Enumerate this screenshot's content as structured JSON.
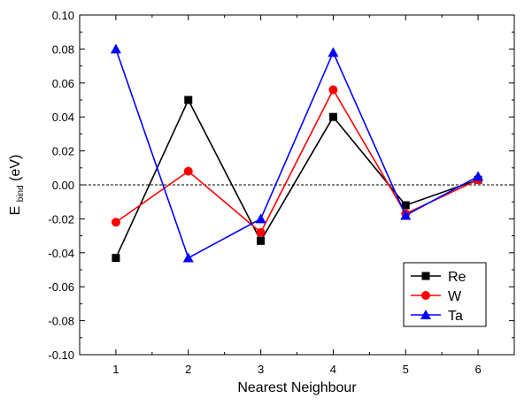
{
  "chart_data": {
    "type": "line",
    "title": "",
    "xlabel": "Nearest Neighbour",
    "ylabel_main": "E",
    "ylabel_sub": "bind",
    "ylabel_unit": "(eV)",
    "x": [
      1,
      2,
      3,
      4,
      5,
      6
    ],
    "x_ticks": [
      "1",
      "2",
      "3",
      "4",
      "5",
      "6"
    ],
    "xlim": [
      0.5,
      6.5
    ],
    "ylim": [
      -0.1,
      0.1
    ],
    "y_ticks": [
      "0.10",
      "0.08",
      "0.06",
      "0.04",
      "0.02",
      "0.00",
      "-0.02",
      "-0.04",
      "-0.06",
      "-0.08",
      "-0.10"
    ],
    "y_tick_values": [
      0.1,
      0.08,
      0.06,
      0.04,
      0.02,
      0.0,
      -0.02,
      -0.04,
      -0.06,
      -0.08,
      -0.1
    ],
    "reference_line": {
      "y": 0.0,
      "style": "dashed"
    },
    "grid": false,
    "legend_position": "bottom-right",
    "series": [
      {
        "name": "Re",
        "color": "#000000",
        "marker": "square",
        "values": [
          -0.043,
          0.05,
          -0.033,
          0.04,
          -0.012,
          0.003
        ]
      },
      {
        "name": "W",
        "color": "#ff0000",
        "marker": "circle",
        "values": [
          -0.022,
          0.008,
          -0.028,
          0.056,
          -0.017,
          0.003
        ]
      },
      {
        "name": "Ta",
        "color": "#0000ff",
        "marker": "triangle",
        "values": [
          0.08,
          -0.043,
          -0.02,
          0.078,
          -0.018,
          0.005
        ]
      }
    ]
  }
}
